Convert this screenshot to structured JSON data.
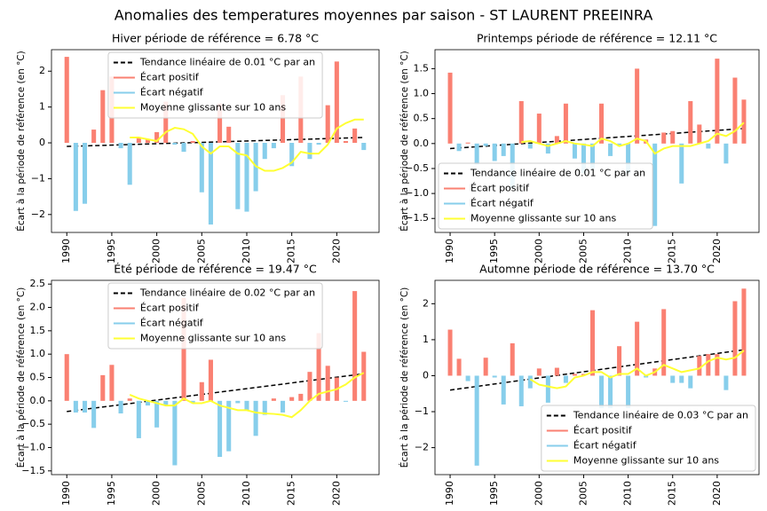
{
  "title": "Anomalies des temperatures moyennes par saison - ST LAURENT PREEINRA",
  "chart_data": [
    {
      "type": "bar",
      "title": "Hiver période de référence = 6.78 °C",
      "ylabel": "Écart à la période de référence (en °C)",
      "legend": "upper center",
      "x": [
        1990,
        1991,
        1992,
        1993,
        1994,
        1995,
        1996,
        1997,
        1998,
        1999,
        2000,
        2001,
        2002,
        2003,
        2004,
        2005,
        2006,
        2007,
        2008,
        2009,
        2010,
        2011,
        2012,
        2013,
        2014,
        2015,
        2016,
        2017,
        2018,
        2019,
        2020,
        2021,
        2022,
        2023
      ],
      "xlim": [
        1988.3,
        2024.7
      ],
      "xticks": [
        1990,
        1995,
        2000,
        2005,
        2010,
        2015,
        2020
      ],
      "ylim": [
        -2.5,
        2.6
      ],
      "yticks": [
        {
          "value": -2,
          "label": "−2"
        },
        {
          "value": -1,
          "label": "−1"
        },
        0,
        1,
        2
      ],
      "series": [
        {
          "name": "Tendance linéaire de 0.01 °C par an",
          "type": "line",
          "dash": true,
          "color": "#000000",
          "x": [
            1990,
            2023
          ],
          "values": [
            -0.1,
            0.15
          ]
        },
        {
          "name": "Écart positif",
          "type": "bar",
          "color": "#fa8072",
          "values": [
            2.4,
            null,
            null,
            0.37,
            1.47,
            1.85,
            null,
            null,
            0.15,
            0.1,
            0.3,
            1.15,
            null,
            null,
            0.05,
            null,
            null,
            1.1,
            0.45,
            null,
            null,
            null,
            null,
            null,
            1.33,
            null,
            1.85,
            null,
            null,
            1.05,
            2.27,
            0.05,
            0.4,
            null
          ]
        },
        {
          "name": "Écart négatif",
          "type": "bar",
          "color": "#87ceeb",
          "values": [
            null,
            -1.9,
            -1.7,
            null,
            null,
            null,
            -0.15,
            -1.17,
            null,
            null,
            null,
            null,
            -0.05,
            -0.25,
            null,
            -1.38,
            -2.28,
            null,
            null,
            -1.85,
            -1.92,
            -1.35,
            -0.45,
            -0.15,
            null,
            -0.65,
            null,
            -0.45,
            -0.05,
            null,
            null,
            null,
            null,
            -0.2
          ]
        },
        {
          "name": "Moyenne glissante sur 10 ans",
          "type": "line",
          "color": "#ffff33",
          "values": [
            null,
            null,
            null,
            null,
            null,
            null,
            null,
            0.15,
            0.15,
            0.1,
            0.05,
            0.3,
            0.42,
            0.38,
            0.25,
            -0.1,
            -0.3,
            -0.1,
            -0.1,
            -0.3,
            -0.35,
            -0.65,
            -0.78,
            -0.78,
            -0.7,
            -0.55,
            -0.25,
            -0.3,
            -0.3,
            -0.05,
            0.4,
            0.55,
            0.65,
            0.65
          ]
        }
      ]
    },
    {
      "type": "bar",
      "title": "Printemps période de référence = 12.11 °C",
      "ylabel": "Écart à la période de référence (en °C)",
      "legend": "lower left",
      "x": [
        1990,
        1991,
        1992,
        1993,
        1994,
        1995,
        1996,
        1997,
        1998,
        1999,
        2000,
        2001,
        2002,
        2003,
        2004,
        2005,
        2006,
        2007,
        2008,
        2009,
        2010,
        2011,
        2012,
        2013,
        2014,
        2015,
        2016,
        2017,
        2018,
        2019,
        2020,
        2021,
        2022,
        2023
      ],
      "xlim": [
        1988.3,
        2024.7
      ],
      "xticks": [
        1990,
        1995,
        2000,
        2005,
        2010,
        2015,
        2020
      ],
      "ylim": [
        -1.78,
        1.88
      ],
      "yticks": [
        {
          "value": -1.5,
          "label": "−1.5"
        },
        {
          "value": -1,
          "label": "−1.0"
        },
        {
          "value": -0.5,
          "label": "−0.5"
        },
        {
          "value": 0,
          "label": "0.0"
        },
        0.5,
        {
          "value": 1,
          "label": "1.0"
        },
        1.5
      ],
      "series": [
        {
          "name": "Tendance linéaire de 0.01 °C par an",
          "type": "line",
          "dash": true,
          "color": "#000000",
          "x": [
            1990,
            2023
          ],
          "values": [
            -0.1,
            0.3
          ]
        },
        {
          "name": "Écart positif",
          "type": "bar",
          "color": "#fa8072",
          "values": [
            1.42,
            null,
            0.02,
            null,
            null,
            null,
            null,
            null,
            0.85,
            null,
            0.6,
            null,
            0.15,
            0.8,
            null,
            null,
            null,
            0.8,
            null,
            null,
            null,
            1.5,
            0.08,
            null,
            0.22,
            0.25,
            null,
            0.85,
            0.38,
            null,
            1.7,
            null,
            1.32,
            0.88
          ]
        },
        {
          "name": "Écart négatif",
          "type": "bar",
          "color": "#87ceeb",
          "values": [
            null,
            -0.15,
            null,
            -0.42,
            -0.05,
            -0.35,
            -0.25,
            -0.9,
            null,
            -0.1,
            null,
            -0.2,
            null,
            null,
            -0.3,
            -0.6,
            -0.5,
            null,
            -0.25,
            -0.05,
            -0.6,
            null,
            null,
            -1.65,
            null,
            null,
            -0.8,
            null,
            null,
            -0.1,
            null,
            -0.4,
            null,
            null
          ]
        },
        {
          "name": "Moyenne glissante sur 10 ans",
          "type": "line",
          "color": "#ffff33",
          "values": [
            null,
            null,
            null,
            null,
            null,
            null,
            null,
            null,
            0.03,
            0.05,
            0.0,
            -0.05,
            0.0,
            0.05,
            0.0,
            -0.02,
            -0.05,
            0.1,
            0.05,
            -0.05,
            0.0,
            0.1,
            0.05,
            -0.2,
            -0.1,
            -0.05,
            -0.05,
            -0.05,
            0.0,
            0.05,
            0.2,
            0.15,
            0.25,
            0.42
          ]
        }
      ]
    },
    {
      "type": "bar",
      "title": "Été période de référence = 19.47 °C",
      "ylabel": "Écart à la période de référence (en °C)",
      "legend": "upper center",
      "x": [
        1990,
        1991,
        1992,
        1993,
        1994,
        1995,
        1996,
        1997,
        1998,
        1999,
        2000,
        2001,
        2002,
        2003,
        2004,
        2005,
        2006,
        2007,
        2008,
        2009,
        2010,
        2011,
        2012,
        2013,
        2014,
        2015,
        2016,
        2017,
        2018,
        2019,
        2020,
        2021,
        2022,
        2023
      ],
      "xlim": [
        1988.3,
        2024.7
      ],
      "xticks": [
        1990,
        1995,
        2000,
        2005,
        2010,
        2015,
        2020
      ],
      "ylim": [
        -1.58,
        2.58
      ],
      "yticks": [
        {
          "value": -1.5,
          "label": "−1.5"
        },
        {
          "value": -1,
          "label": "−1.0"
        },
        {
          "value": -0.5,
          "label": "−0.5"
        },
        {
          "value": 0,
          "label": "0.0"
        },
        0.5,
        {
          "value": 1,
          "label": "1.0"
        },
        1.5,
        {
          "value": 2,
          "label": "2.0"
        },
        2.5
      ],
      "series": [
        {
          "name": "Tendance linéaire de 0.02 °C par an",
          "type": "line",
          "dash": true,
          "color": "#000000",
          "x": [
            1990,
            2023
          ],
          "values": [
            -0.23,
            0.58
          ]
        },
        {
          "name": "Écart positif",
          "type": "bar",
          "color": "#fa8072",
          "values": [
            1.0,
            null,
            null,
            null,
            0.55,
            0.77,
            null,
            0.05,
            null,
            null,
            null,
            null,
            null,
            2.2,
            null,
            0.4,
            0.88,
            null,
            null,
            null,
            null,
            null,
            null,
            0.05,
            null,
            0.08,
            0.15,
            0.62,
            1.45,
            0.75,
            0.5,
            null,
            2.35,
            1.05
          ]
        },
        {
          "name": "Écart négatif",
          "type": "bar",
          "color": "#87ceeb",
          "values": [
            null,
            -0.25,
            -0.25,
            -0.58,
            null,
            null,
            -0.27,
            null,
            -0.8,
            -0.1,
            -0.57,
            -0.1,
            -1.38,
            null,
            -0.05,
            null,
            null,
            -1.2,
            -1.08,
            -0.05,
            -0.2,
            -0.75,
            -0.3,
            null,
            -0.25,
            null,
            null,
            null,
            null,
            null,
            null,
            -0.02,
            null,
            null
          ]
        },
        {
          "name": "Moyenne glissante sur 10 ans",
          "type": "line",
          "color": "#ffff33",
          "values": [
            null,
            null,
            null,
            null,
            null,
            null,
            null,
            0.13,
            0.05,
            0.0,
            -0.05,
            -0.1,
            -0.1,
            0.05,
            -0.05,
            -0.05,
            0.0,
            -0.1,
            -0.15,
            -0.2,
            -0.2,
            -0.25,
            -0.27,
            -0.28,
            -0.3,
            -0.35,
            -0.2,
            0.0,
            0.15,
            0.2,
            0.25,
            0.35,
            0.5,
            0.6
          ]
        }
      ]
    },
    {
      "type": "bar",
      "title": "Automne période de référence = 13.70 °C",
      "ylabel": "Écart à la période de référence (en °C)",
      "legend": "lower right",
      "x": [
        1990,
        1991,
        1992,
        1993,
        1994,
        1995,
        1996,
        1997,
        1998,
        1999,
        2000,
        2001,
        2002,
        2003,
        2004,
        2005,
        2006,
        2007,
        2008,
        2009,
        2010,
        2011,
        2012,
        2013,
        2014,
        2015,
        2016,
        2017,
        2018,
        2019,
        2020,
        2021,
        2022,
        2023
      ],
      "xlim": [
        1988.3,
        2024.7
      ],
      "xticks": [
        1990,
        1995,
        2000,
        2005,
        2010,
        2015,
        2020
      ],
      "ylim": [
        -2.75,
        2.65
      ],
      "yticks": [
        {
          "value": -2,
          "label": "−2"
        },
        {
          "value": -1,
          "label": "−1"
        },
        0,
        1,
        2
      ],
      "series": [
        {
          "name": "Tendance linéaire de 0.03 °C par an",
          "type": "line",
          "dash": true,
          "color": "#000000",
          "x": [
            1990,
            2023
          ],
          "values": [
            -0.4,
            0.72
          ]
        },
        {
          "name": "Écart positif",
          "type": "bar",
          "color": "#fa8072",
          "values": [
            1.28,
            0.47,
            null,
            null,
            0.5,
            null,
            null,
            0.9,
            null,
            null,
            0.2,
            null,
            0.22,
            null,
            0.05,
            0.05,
            1.82,
            null,
            null,
            0.82,
            null,
            1.5,
            null,
            0.2,
            1.85,
            null,
            null,
            null,
            0.55,
            0.6,
            0.6,
            null,
            2.07,
            2.42
          ]
        },
        {
          "name": "Écart négatif",
          "type": "bar",
          "color": "#87ceeb",
          "values": [
            null,
            null,
            -0.15,
            -2.5,
            null,
            -0.05,
            -0.8,
            null,
            -0.85,
            -0.35,
            null,
            -0.75,
            null,
            -0.2,
            null,
            null,
            null,
            -0.9,
            -0.9,
            null,
            -0.9,
            null,
            -0.05,
            null,
            null,
            -0.2,
            -0.2,
            -0.35,
            null,
            null,
            null,
            -0.4,
            null,
            null
          ]
        },
        {
          "name": "Moyenne glissante sur 10 ans",
          "type": "line",
          "color": "#ffff33",
          "values": [
            null,
            null,
            null,
            null,
            null,
            null,
            null,
            null,
            null,
            -0.1,
            -0.25,
            -0.3,
            -0.35,
            -0.3,
            -0.05,
            0.0,
            0.1,
            0.1,
            -0.05,
            0.05,
            0.05,
            0.2,
            0.0,
            0.1,
            0.3,
            0.2,
            0.1,
            0.15,
            0.2,
            0.4,
            0.5,
            0.45,
            0.5,
            0.7
          ]
        }
      ]
    }
  ]
}
